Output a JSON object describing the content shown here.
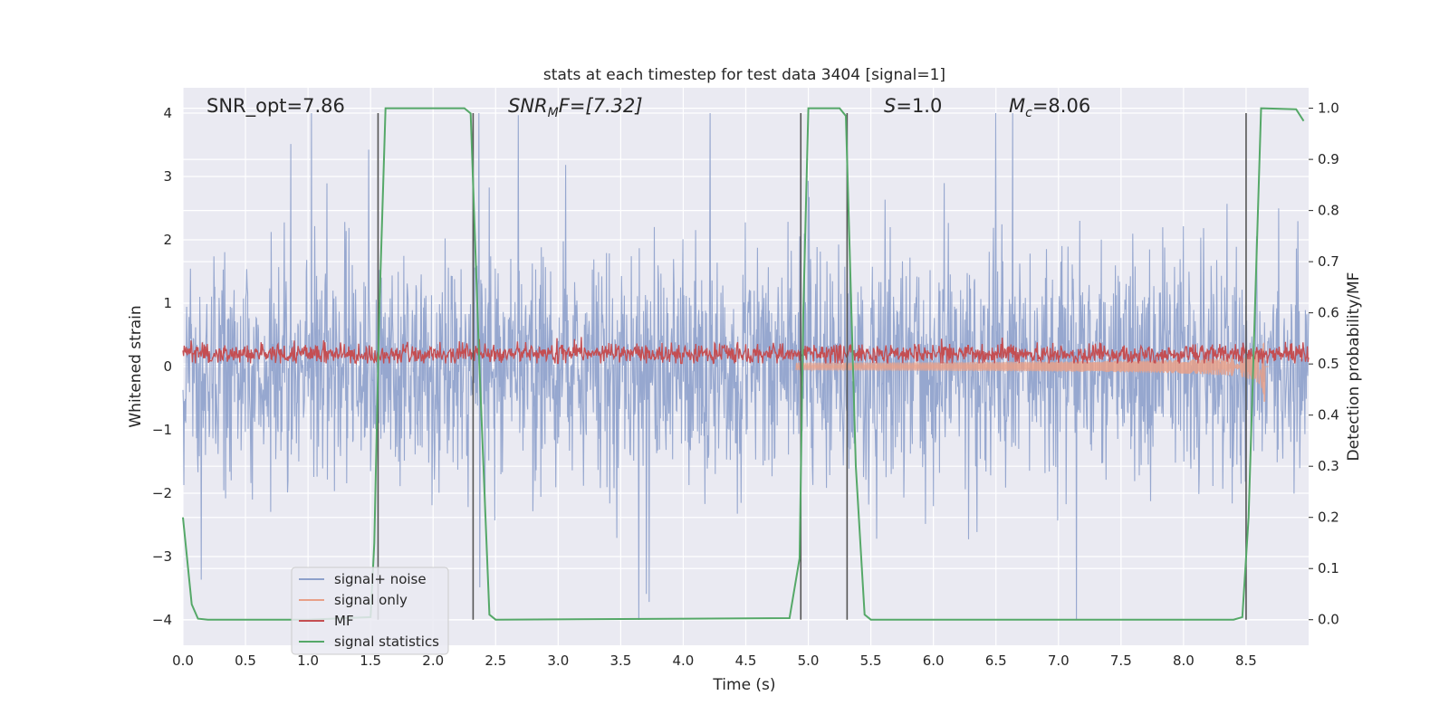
{
  "chart_data": {
    "type": "line",
    "title": "stats at each timestep for test data 3404 [signal=1]",
    "xlabel": "Time (s)",
    "ylabel": "Whitened strain",
    "ylabel_right": "Detection probability/MF",
    "xlim": [
      0.0,
      9.0
    ],
    "ylim": [
      -4.4,
      4.4
    ],
    "ylim_right": [
      -0.05,
      1.04
    ],
    "x_ticks": [
      "0.0",
      "0.5",
      "1.0",
      "1.5",
      "2.0",
      "2.5",
      "3.0",
      "3.5",
      "4.0",
      "4.5",
      "5.0",
      "5.5",
      "6.0",
      "6.5",
      "7.0",
      "7.5",
      "8.0",
      "8.5"
    ],
    "x_tick_values": [
      0,
      0.5,
      1,
      1.5,
      2,
      2.5,
      3,
      3.5,
      4,
      4.5,
      5,
      5.5,
      6,
      6.5,
      7,
      7.5,
      8,
      8.5
    ],
    "y_ticks": [
      "−4",
      "−3",
      "−2",
      "−1",
      "0",
      "1",
      "2",
      "3",
      "4"
    ],
    "y_tick_values": [
      -4,
      -3,
      -2,
      -1,
      0,
      1,
      2,
      3,
      4
    ],
    "y_right_ticks": [
      "0.0",
      "0.1",
      "0.2",
      "0.3",
      "0.4",
      "0.5",
      "0.6",
      "0.7",
      "0.8",
      "0.9",
      "1.0"
    ],
    "y_right_tick_values": [
      0,
      0.1,
      0.2,
      0.3,
      0.4,
      0.5,
      0.6,
      0.7,
      0.8,
      0.9,
      1.0
    ],
    "grid": true,
    "legend_placement": "lower-left",
    "annotations": {
      "snr_opt": "SNR_opt=7.86",
      "snr_mf_base": "SNR",
      "snr_mf_sub": "M",
      "snr_mf_rest": "F=[7.32]",
      "s_italic": "S",
      "s_rest": "=1.0",
      "mc_base": "M",
      "mc_sub": "c",
      "mc_rest": "=8.06"
    },
    "series": [
      {
        "name": "signal+ noise",
        "color": "#8da0cb",
        "band": [
          -4.0,
          4.0
        ],
        "typical_envelope": [
          -1.6,
          2.2
        ]
      },
      {
        "name": "signal only",
        "color": "#e8a088",
        "chirp_onset": 4.9,
        "merger_time": 8.65,
        "peak": [
          -1.25,
          1.0
        ]
      },
      {
        "name": "MF",
        "color": "#c44e52",
        "mean": 0.2,
        "band": [
          0.05,
          0.5
        ]
      },
      {
        "name": "signal statistics",
        "color": "#55a868",
        "x": [
          0.0,
          0.07,
          0.12,
          0.2,
          1.0,
          1.5,
          1.53,
          1.57,
          1.62,
          2.25,
          2.3,
          2.37,
          2.45,
          2.5,
          4.85,
          4.93,
          4.96,
          5.0,
          5.25,
          5.3,
          5.38,
          5.45,
          5.5,
          8.4,
          8.47,
          8.52,
          8.57,
          8.62,
          8.9,
          8.96
        ],
        "y": [
          0.2,
          0.03,
          0.002,
          0.0,
          0.0,
          0.005,
          0.15,
          0.6,
          1.0,
          1.0,
          0.99,
          0.5,
          0.01,
          0.0,
          0.003,
          0.12,
          0.6,
          1.0,
          1.0,
          0.985,
          0.3,
          0.01,
          0.0,
          0.0,
          0.005,
          0.2,
          0.6,
          1.0,
          0.998,
          0.975
        ]
      }
    ],
    "vertical_lines": [
      1.56,
      2.32,
      4.94,
      5.31,
      8.5
    ]
  },
  "colors": {
    "plot_bg": "#eaeaf2",
    "grid": "#ffffff",
    "vline": "#555555"
  }
}
